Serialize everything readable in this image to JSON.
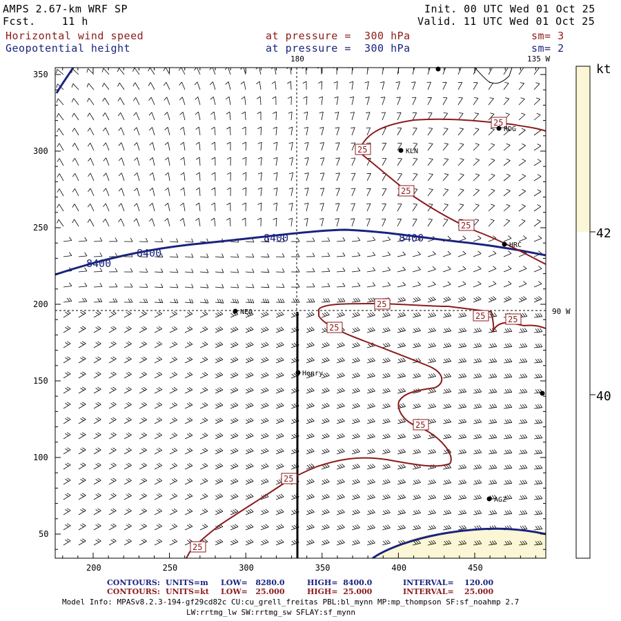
{
  "header": {
    "model": "AMPS 2.67-km WRF SP",
    "fcst": "Fcst.    11 h",
    "init": "Init. 00 UTC Wed 01 Oct 25",
    "valid": "Valid. 11 UTC Wed 01 Oct 25",
    "field1_name": "Horizontal wind speed",
    "field1_level": "at pressure =  300 hPa",
    "field1_sm": "sm= 3",
    "field2_name": "Geopotential height",
    "field2_level": "at pressure =  300 hPa",
    "field2_sm": "sm= 2"
  },
  "map": {
    "lon_labels": {
      "top_180": "180",
      "top_135w": "135 W",
      "right_90w": "90 W"
    },
    "x_ticks": [
      "200",
      "250",
      "300",
      "350",
      "400",
      "450"
    ],
    "y_ticks": [
      "350",
      "300",
      "250",
      "200",
      "150",
      "100",
      "50"
    ],
    "stations": [
      "RDG",
      "KLN",
      "HRC",
      "NEO",
      "Henry",
      "AGZ"
    ],
    "height_contour_label": "8400",
    "speed_contour_label": "25"
  },
  "colorbar": {
    "unit": "kt",
    "labels": [
      "42",
      "40"
    ],
    "fill_color": "#fbf6d5"
  },
  "footer": {
    "c1_head": "CONTOURS:",
    "c1_units": "UNITS=m",
    "c1_low": "LOW=   8280.0",
    "c1_high": "HIGH=  8400.0",
    "c1_int": "INTERVAL=    120.00",
    "c2_head": "CONTOURS:",
    "c2_units": "UNITS=kt",
    "c2_low": "LOW=   25.000",
    "c2_high": "HIGH=  25.000",
    "c2_int": "INTERVAL=    25.000",
    "info1": "Model Info: MPASv8.2.3-194-gf29cd82c CU:cu_grell_freitas PBL:bl_mynn MP:mp_thompson SF:sf_noahmp 2.7",
    "info2": "LW:rrtmg_lw SW:rrtmg_sw SFLAY:sf_mynn"
  },
  "colors": {
    "height_contour": "#1a237e",
    "speed_contour": "#8b1a1a",
    "barbs": "#000000"
  }
}
